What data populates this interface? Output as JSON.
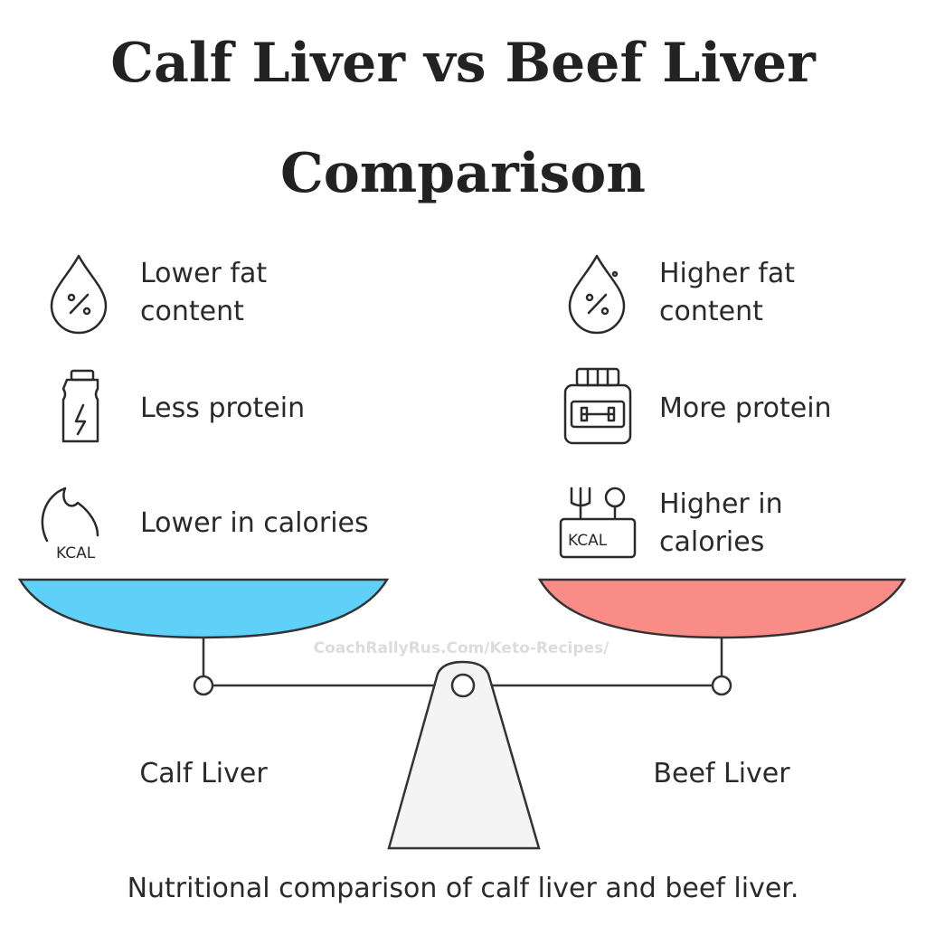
{
  "header": {
    "title": [
      "Calf Liver vs Beef Liver",
      "Comparison"
    ]
  },
  "left": {
    "label": "Calf Liver",
    "items": [
      [
        "Lower fat",
        "content"
      ],
      [
        "Less protein"
      ],
      [
        "Lower in calories"
      ]
    ]
  },
  "right": {
    "label": "Beef Liver",
    "items": [
      [
        "Higher fat",
        "content"
      ],
      [
        "More protein"
      ],
      [
        "Higher in",
        "calories"
      ]
    ]
  },
  "watermark": "CoachRallyRus.Com/Keto-Recipes/",
  "caption": "Nutritional comparison of calf liver and beef liver."
}
